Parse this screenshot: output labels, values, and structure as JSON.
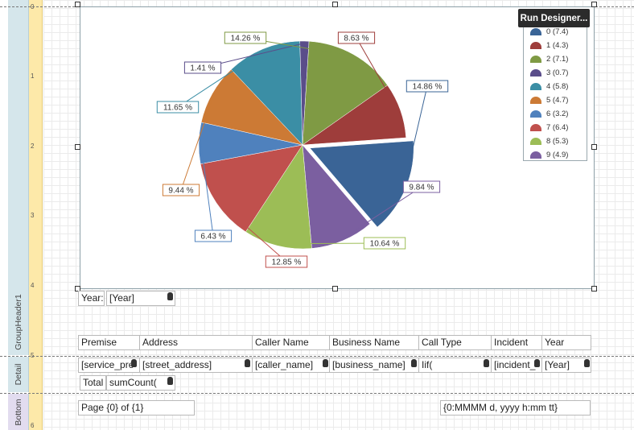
{
  "bands": {
    "group_header": "GroupHeader1",
    "detail": "Detail",
    "bottom": "Bottom"
  },
  "ruler": [
    "0",
    "1",
    "2",
    "3",
    "4",
    "5",
    "6"
  ],
  "chart": {
    "run_designer": "Run Designer..."
  },
  "chart_data": {
    "type": "pie",
    "slices": [
      {
        "name": "0 (7.4)",
        "value": 14.86,
        "label": "14.86 %",
        "color": "#3a6496",
        "exploded": true
      },
      {
        "name": "9 (4.9)",
        "value": 9.84,
        "label": "9.84 %",
        "color": "#7b5fa0"
      },
      {
        "name": "8 (5.3)",
        "value": 10.64,
        "label": "10.64 %",
        "color": "#9cbd56"
      },
      {
        "name": "7 (6.4)",
        "value": 12.85,
        "label": "12.85 %",
        "color": "#c0504d"
      },
      {
        "name": "6 (3.2)",
        "value": 6.43,
        "label": "6.43 %",
        "color": "#4f81bd"
      },
      {
        "name": "5 (4.7)",
        "value": 9.44,
        "label": "9.44 %",
        "color": "#cc7a35"
      },
      {
        "name": "4 (5.8)",
        "value": 11.65,
        "label": "11.65 %",
        "color": "#3b8ea5"
      },
      {
        "name": "3 (0.7)",
        "value": 1.41,
        "label": "1.41 %",
        "color": "#5a4d8a"
      },
      {
        "name": "2 (7.1)",
        "value": 14.26,
        "label": "14.26 %",
        "color": "#7f9a44"
      },
      {
        "name": "1 (4.3)",
        "value": 8.63,
        "label": "8.63 %",
        "color": "#9e3d3b"
      }
    ],
    "legend": [
      "0 (7.4)",
      "1 (4.3)",
      "2 (7.1)",
      "3 (0.7)",
      "4 (5.8)",
      "5 (4.7)",
      "6 (3.2)",
      "7 (6.4)",
      "8 (5.3)",
      "9 (4.9)"
    ],
    "legend_colors": [
      "#3a6496",
      "#9e3d3b",
      "#7f9a44",
      "#5a4d8a",
      "#3b8ea5",
      "#cc7a35",
      "#4f81bd",
      "#c0504d",
      "#9cbd56",
      "#7b5fa0"
    ]
  },
  "group_header": {
    "year_label": "Year:",
    "year_value": "[Year]",
    "columns": [
      "Premise",
      "Address",
      "Caller Name",
      "Business Name",
      "Call Type",
      "Incident",
      "Year"
    ]
  },
  "detail": {
    "fields": [
      "[service_pre",
      "[street_address]",
      "[caller_name]",
      "[business_name]",
      "Iif(",
      "[incident_",
      "[Year]"
    ]
  },
  "totals": {
    "label": "Total",
    "value": "sumCount("
  },
  "footer": {
    "page": "Page {0} of {1}",
    "datetime": "{0:MMMM d, yyyy h:mm tt}"
  }
}
